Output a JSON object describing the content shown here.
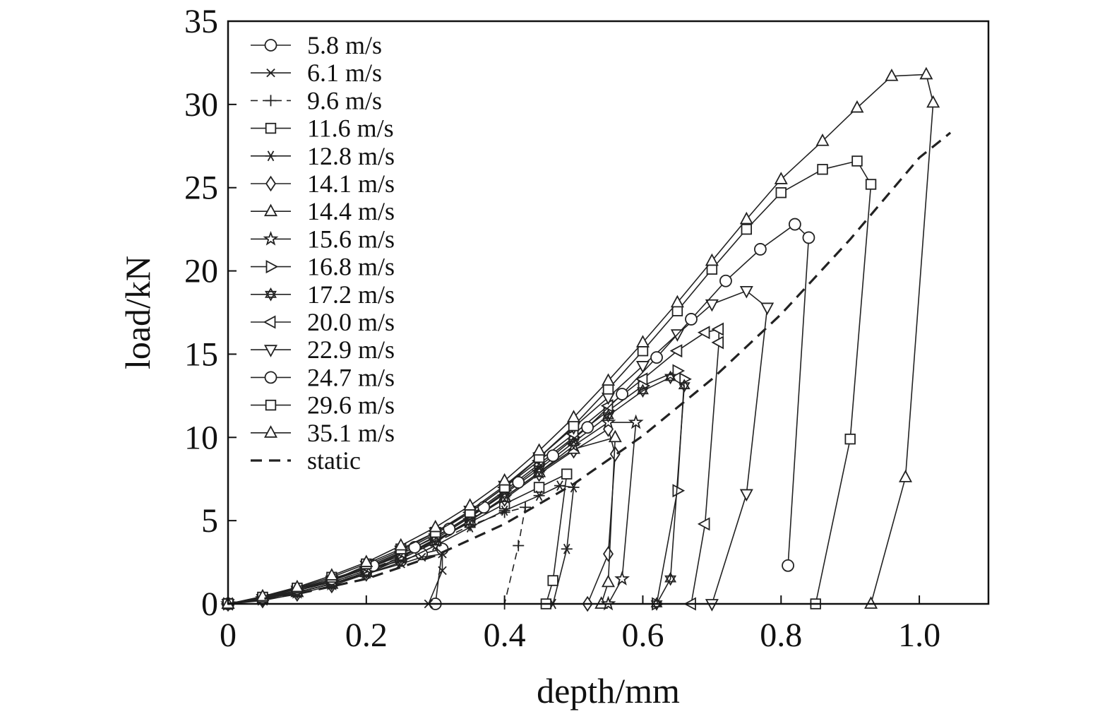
{
  "chart_data": {
    "type": "line",
    "title": "",
    "xlabel": "depth/mm",
    "ylabel": "load/kN",
    "xlim": [
      0,
      1.1
    ],
    "ylim": [
      0,
      35
    ],
    "xticks": [
      0,
      0.2,
      0.4,
      0.6,
      0.8,
      1.0
    ],
    "xtick_labels": [
      "0",
      "0.2",
      "0.4",
      "0.6",
      "0.8",
      "1.0"
    ],
    "yticks": [
      0,
      5,
      10,
      15,
      20,
      25,
      30,
      35
    ],
    "ytick_labels": [
      "0",
      "5",
      "10",
      "15",
      "20",
      "25",
      "30",
      "35"
    ],
    "legend_position": "top-left",
    "series": [
      {
        "name": "5.8 m/s",
        "marker": "circle",
        "style": "solid",
        "points": [
          [
            0,
            0
          ],
          [
            0.05,
            0.35
          ],
          [
            0.1,
            0.8
          ],
          [
            0.15,
            1.3
          ],
          [
            0.2,
            2.0
          ],
          [
            0.25,
            2.6
          ],
          [
            0.28,
            3.0
          ],
          [
            0.31,
            3.3
          ],
          [
            0.3,
            0
          ]
        ]
      },
      {
        "name": "6.1 m/s",
        "marker": "x",
        "style": "solid",
        "points": [
          [
            0,
            0
          ],
          [
            0.05,
            0.3
          ],
          [
            0.1,
            0.7
          ],
          [
            0.15,
            1.2
          ],
          [
            0.2,
            1.8
          ],
          [
            0.25,
            2.4
          ],
          [
            0.28,
            2.8
          ],
          [
            0.31,
            3.0
          ],
          [
            0.31,
            2.0
          ],
          [
            0.29,
            0
          ]
        ]
      },
      {
        "name": "9.6 m/s",
        "marker": "plus",
        "style": "dashed",
        "points": [
          [
            0,
            0
          ],
          [
            0.05,
            0.3
          ],
          [
            0.1,
            0.8
          ],
          [
            0.15,
            1.3
          ],
          [
            0.2,
            2.0
          ],
          [
            0.25,
            2.8
          ],
          [
            0.3,
            3.7
          ],
          [
            0.35,
            4.7
          ],
          [
            0.4,
            5.5
          ],
          [
            0.43,
            5.8
          ],
          [
            0.42,
            3.5
          ],
          [
            0.4,
            0
          ]
        ]
      },
      {
        "name": "11.6 m/s",
        "marker": "square",
        "style": "solid",
        "points": [
          [
            0,
            0
          ],
          [
            0.05,
            0.4
          ],
          [
            0.1,
            0.9
          ],
          [
            0.15,
            1.4
          ],
          [
            0.2,
            2.1
          ],
          [
            0.25,
            2.9
          ],
          [
            0.3,
            3.8
          ],
          [
            0.35,
            4.9
          ],
          [
            0.4,
            6.0
          ],
          [
            0.45,
            7.0
          ],
          [
            0.49,
            7.8
          ],
          [
            0.47,
            1.4
          ],
          [
            0.46,
            0
          ]
        ]
      },
      {
        "name": "12.8 m/s",
        "marker": "asterisk",
        "style": "solid",
        "points": [
          [
            0,
            0
          ],
          [
            0.05,
            0.3
          ],
          [
            0.1,
            0.7
          ],
          [
            0.15,
            1.2
          ],
          [
            0.2,
            1.8
          ],
          [
            0.25,
            2.5
          ],
          [
            0.3,
            3.5
          ],
          [
            0.35,
            4.6
          ],
          [
            0.4,
            5.6
          ],
          [
            0.45,
            6.5
          ],
          [
            0.48,
            7.1
          ],
          [
            0.5,
            7.0
          ],
          [
            0.49,
            3.3
          ],
          [
            0.47,
            0
          ]
        ]
      },
      {
        "name": "14.1 m/s",
        "marker": "diamond",
        "style": "solid",
        "points": [
          [
            0,
            0
          ],
          [
            0.05,
            0.2
          ],
          [
            0.1,
            0.6
          ],
          [
            0.15,
            1.1
          ],
          [
            0.2,
            1.8
          ],
          [
            0.25,
            2.7
          ],
          [
            0.3,
            3.7
          ],
          [
            0.35,
            5.0
          ],
          [
            0.4,
            6.3
          ],
          [
            0.45,
            7.8
          ],
          [
            0.5,
            9.2
          ],
          [
            0.55,
            10.5
          ],
          [
            0.56,
            9.0
          ],
          [
            0.55,
            3.0
          ],
          [
            0.52,
            0
          ]
        ]
      },
      {
        "name": "14.4 m/s",
        "marker": "triangle-up",
        "style": "solid",
        "points": [
          [
            0,
            0
          ],
          [
            0.05,
            0.25
          ],
          [
            0.1,
            0.7
          ],
          [
            0.15,
            1.2
          ],
          [
            0.2,
            1.9
          ],
          [
            0.25,
            2.8
          ],
          [
            0.3,
            3.8
          ],
          [
            0.35,
            5.0
          ],
          [
            0.4,
            6.4
          ],
          [
            0.45,
            7.9
          ],
          [
            0.5,
            9.3
          ],
          [
            0.56,
            10.0
          ],
          [
            0.55,
            1.3
          ],
          [
            0.54,
            0
          ]
        ]
      },
      {
        "name": "15.6 m/s",
        "marker": "star",
        "style": "solid",
        "points": [
          [
            0,
            0
          ],
          [
            0.05,
            0.3
          ],
          [
            0.1,
            0.7
          ],
          [
            0.15,
            1.2
          ],
          [
            0.2,
            1.9
          ],
          [
            0.25,
            2.8
          ],
          [
            0.3,
            3.8
          ],
          [
            0.35,
            5.0
          ],
          [
            0.4,
            6.4
          ],
          [
            0.45,
            7.9
          ],
          [
            0.5,
            9.5
          ],
          [
            0.55,
            10.9
          ],
          [
            0.59,
            10.9
          ],
          [
            0.57,
            1.5
          ],
          [
            0.55,
            0
          ]
        ]
      },
      {
        "name": "16.8 m/s",
        "marker": "triangle-right",
        "style": "solid",
        "points": [
          [
            0,
            0
          ],
          [
            0.05,
            0.3
          ],
          [
            0.1,
            0.8
          ],
          [
            0.15,
            1.4
          ],
          [
            0.2,
            2.1
          ],
          [
            0.25,
            3.0
          ],
          [
            0.3,
            4.0
          ],
          [
            0.35,
            5.3
          ],
          [
            0.4,
            6.8
          ],
          [
            0.45,
            8.4
          ],
          [
            0.5,
            10.0
          ],
          [
            0.55,
            11.6
          ],
          [
            0.6,
            13.1
          ],
          [
            0.65,
            14.0
          ],
          [
            0.66,
            13.5
          ],
          [
            0.65,
            6.8
          ],
          [
            0.62,
            0
          ]
        ]
      },
      {
        "name": "17.2 m/s",
        "marker": "hexagram",
        "style": "solid",
        "points": [
          [
            0,
            0
          ],
          [
            0.05,
            0.3
          ],
          [
            0.1,
            0.7
          ],
          [
            0.15,
            1.2
          ],
          [
            0.2,
            1.9
          ],
          [
            0.25,
            2.8
          ],
          [
            0.3,
            3.9
          ],
          [
            0.35,
            5.2
          ],
          [
            0.4,
            6.6
          ],
          [
            0.45,
            8.1
          ],
          [
            0.5,
            9.7
          ],
          [
            0.55,
            11.3
          ],
          [
            0.6,
            12.8
          ],
          [
            0.64,
            13.6
          ],
          [
            0.66,
            13.1
          ],
          [
            0.64,
            1.5
          ],
          [
            0.62,
            0
          ]
        ]
      },
      {
        "name": "20.0 m/s",
        "marker": "triangle-left",
        "style": "solid",
        "points": [
          [
            0,
            0
          ],
          [
            0.05,
            0.3
          ],
          [
            0.1,
            0.8
          ],
          [
            0.15,
            1.4
          ],
          [
            0.2,
            2.2
          ],
          [
            0.25,
            3.1
          ],
          [
            0.3,
            4.2
          ],
          [
            0.35,
            5.5
          ],
          [
            0.4,
            7.0
          ],
          [
            0.45,
            8.6
          ],
          [
            0.5,
            10.2
          ],
          [
            0.55,
            11.9
          ],
          [
            0.6,
            13.5
          ],
          [
            0.65,
            15.2
          ],
          [
            0.69,
            16.3
          ],
          [
            0.71,
            16.5
          ],
          [
            0.71,
            15.7
          ],
          [
            0.69,
            4.8
          ],
          [
            0.67,
            0
          ]
        ]
      },
      {
        "name": "22.9 m/s",
        "marker": "triangle-down",
        "style": "solid",
        "points": [
          [
            0,
            0
          ],
          [
            0.05,
            0.3
          ],
          [
            0.1,
            0.8
          ],
          [
            0.15,
            1.4
          ],
          [
            0.2,
            2.3
          ],
          [
            0.25,
            3.2
          ],
          [
            0.3,
            4.3
          ],
          [
            0.35,
            5.6
          ],
          [
            0.4,
            7.1
          ],
          [
            0.45,
            8.8
          ],
          [
            0.5,
            10.6
          ],
          [
            0.55,
            12.4
          ],
          [
            0.6,
            14.3
          ],
          [
            0.65,
            16.2
          ],
          [
            0.7,
            18.0
          ],
          [
            0.75,
            18.8
          ],
          [
            0.78,
            17.8
          ],
          [
            0.75,
            6.6
          ],
          [
            0.7,
            0
          ]
        ]
      },
      {
        "name": "24.7 m/s",
        "marker": "circle",
        "style": "solid",
        "points": [
          [
            0,
            0
          ],
          [
            0.05,
            0.35
          ],
          [
            0.1,
            0.9
          ],
          [
            0.15,
            1.5
          ],
          [
            0.21,
            2.3
          ],
          [
            0.27,
            3.4
          ],
          [
            0.32,
            4.5
          ],
          [
            0.37,
            5.8
          ],
          [
            0.42,
            7.3
          ],
          [
            0.47,
            8.9
          ],
          [
            0.52,
            10.6
          ],
          [
            0.57,
            12.6
          ],
          [
            0.62,
            14.8
          ],
          [
            0.67,
            17.1
          ],
          [
            0.72,
            19.4
          ],
          [
            0.77,
            21.3
          ],
          [
            0.82,
            22.8
          ],
          [
            0.84,
            22.0
          ],
          [
            0.81,
            2.3
          ]
        ]
      },
      {
        "name": "29.6 m/s",
        "marker": "square",
        "style": "solid",
        "points": [
          [
            0,
            0
          ],
          [
            0.05,
            0.4
          ],
          [
            0.1,
            0.95
          ],
          [
            0.15,
            1.6
          ],
          [
            0.2,
            2.4
          ],
          [
            0.25,
            3.3
          ],
          [
            0.3,
            4.3
          ],
          [
            0.35,
            5.5
          ],
          [
            0.4,
            7.0
          ],
          [
            0.45,
            8.8
          ],
          [
            0.5,
            10.7
          ],
          [
            0.55,
            12.9
          ],
          [
            0.6,
            15.2
          ],
          [
            0.65,
            17.6
          ],
          [
            0.7,
            20.1
          ],
          [
            0.75,
            22.5
          ],
          [
            0.8,
            24.7
          ],
          [
            0.86,
            26.1
          ],
          [
            0.91,
            26.6
          ],
          [
            0.93,
            25.2
          ],
          [
            0.9,
            9.9
          ],
          [
            0.85,
            0
          ]
        ]
      },
      {
        "name": "35.1 m/s",
        "marker": "triangle-up",
        "style": "solid",
        "points": [
          [
            0,
            0
          ],
          [
            0.05,
            0.45
          ],
          [
            0.1,
            1.0
          ],
          [
            0.15,
            1.7
          ],
          [
            0.2,
            2.5
          ],
          [
            0.25,
            3.5
          ],
          [
            0.3,
            4.6
          ],
          [
            0.35,
            5.9
          ],
          [
            0.4,
            7.4
          ],
          [
            0.45,
            9.2
          ],
          [
            0.5,
            11.2
          ],
          [
            0.55,
            13.4
          ],
          [
            0.6,
            15.7
          ],
          [
            0.65,
            18.1
          ],
          [
            0.7,
            20.6
          ],
          [
            0.75,
            23.1
          ],
          [
            0.8,
            25.5
          ],
          [
            0.86,
            27.8
          ],
          [
            0.91,
            29.8
          ],
          [
            0.96,
            31.7
          ],
          [
            1.01,
            31.8
          ],
          [
            1.02,
            30.1
          ],
          [
            0.98,
            7.6
          ],
          [
            0.93,
            0
          ]
        ]
      },
      {
        "name": "static",
        "marker": "none",
        "style": "dashed-thick",
        "points": [
          [
            0,
            0
          ],
          [
            0.1,
            0.6
          ],
          [
            0.2,
            1.5
          ],
          [
            0.3,
            2.9
          ],
          [
            0.4,
            4.8
          ],
          [
            0.5,
            7.2
          ],
          [
            0.6,
            10.1
          ],
          [
            0.7,
            13.5
          ],
          [
            0.8,
            17.4
          ],
          [
            0.9,
            21.9
          ],
          [
            1.0,
            26.8
          ],
          [
            1.045,
            28.3
          ]
        ]
      }
    ]
  }
}
